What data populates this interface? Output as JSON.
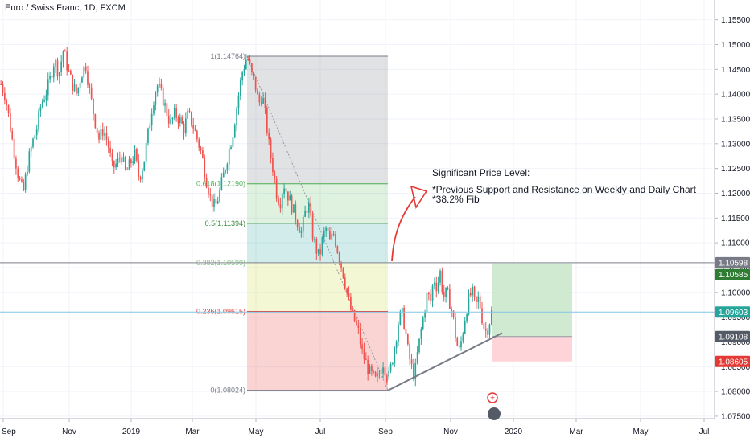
{
  "chart_title": "Euro / Swiss Franc, 1D, FXCM",
  "annotation": {
    "heading": "Significant Price Level:",
    "line1": "*Previous Support and Resistance on Weekly and Daily Chart",
    "line2": "*38.2% Fib"
  },
  "colors": {
    "up_candle": "#26a69a",
    "down_candle": "#ef5350",
    "profit_zone": "#c8e6c9",
    "loss_zone": "#ffcdd2",
    "current_price_line": "#82c5e6",
    "annotation_arrow": "#e53935"
  },
  "chart_data": {
    "type": "candlestick",
    "title": "Euro / Swiss Franc, 1D, FXCM",
    "y_ticks": [
      "1.15500",
      "1.15000",
      "1.14500",
      "1.14000",
      "1.13500",
      "1.13000",
      "1.12500",
      "1.12000",
      "1.11500",
      "1.11000",
      "1.10500",
      "1.10000",
      "1.09500",
      "1.09000",
      "1.08500",
      "1.08000",
      "1.07500"
    ],
    "x_ticks": [
      "Sep",
      "Nov",
      "2019",
      "Mar",
      "May",
      "Jul",
      "Sep",
      "Nov",
      "2020",
      "Mar",
      "May",
      "Jul"
    ],
    "ylim": [
      1.0745,
      1.159
    ],
    "fib_levels": [
      {
        "label": "1(1.14764)",
        "ratio": 1,
        "price": 1.14764,
        "color": "#787b86"
      },
      {
        "label": "0.618(1.12190)",
        "ratio": 0.618,
        "price": 1.1219,
        "color": "#4caf50"
      },
      {
        "label": "0.5(1.11394)",
        "ratio": 0.5,
        "price": 1.11394,
        "color": "#388e3c"
      },
      {
        "label": "0.382(1.10599)",
        "ratio": 0.382,
        "price": 1.10599,
        "color": "#81c784"
      },
      {
        "label": "0.236(1.09615)",
        "ratio": 0.236,
        "price": 1.09615,
        "color": "#e53935"
      },
      {
        "label": "0(1.08024)",
        "ratio": 0,
        "price": 1.08024,
        "color": "#787b86"
      }
    ],
    "horizontal_level": 1.10598,
    "current_price": 1.09603,
    "position": {
      "entry": 1.09108,
      "target": 1.10585,
      "stop": 1.08605
    },
    "price_tags": [
      {
        "value": "1.10598",
        "price": 1.10598,
        "bg": "#787b86"
      },
      {
        "value": "1.10585",
        "price": 1.10585,
        "bg": "#2e7d32"
      },
      {
        "value": "1.09603",
        "price": 1.09603,
        "bg": "#26a69a"
      },
      {
        "value": "1.09108",
        "price": 1.09108,
        "bg": "#555b66"
      },
      {
        "value": "1.08605",
        "price": 1.08605,
        "bg": "#e53935"
      }
    ],
    "badge_count": "4",
    "ohlc_path": [
      [
        1.142,
        1.1395,
        1.134,
        1.128,
        1.123,
        1.12,
        1.126,
        1.13,
        1.133,
        1.138,
        1.14,
        1.143,
        1.147,
        1.144,
        1.149,
        1.145,
        1.142,
        1.14,
        1.144,
        1.146,
        1.14,
        1.135,
        1.131,
        1.133,
        1.13,
        1.125,
        1.126,
        1.128,
        1.124,
        1.126,
        1.128,
        1.123,
        1.126,
        1.132,
        1.138,
        1.142,
        1.14,
        1.137,
        1.134,
        1.136,
        1.135,
        1.133,
        1.136,
        1.134,
        1.131,
        1.128,
        1.123,
        1.119,
        1.117,
        1.12,
        1.124,
        1.128,
        1.132,
        1.138,
        1.144,
        1.147
      ],
      [
        1.147,
        1.144,
        1.142,
        1.138,
        1.14,
        1.135,
        1.129,
        1.125,
        1.12,
        1.118,
        1.122,
        1.12,
        1.118,
        1.116,
        1.114,
        1.112,
        1.116,
        1.118,
        1.112,
        1.109,
        1.107,
        1.111,
        1.113,
        1.11,
        1.112,
        1.109,
        1.106,
        1.103,
        1.099,
        1.096,
        1.094,
        1.092,
        1.088,
        1.086,
        1.084,
        1.083,
        1.082,
        1.084,
        1.086,
        1.083
      ],
      [
        1.083,
        1.086,
        1.09,
        1.094,
        1.096,
        1.093,
        1.088,
        1.085,
        1.083,
        1.088,
        1.092,
        1.096,
        1.1,
        1.098,
        1.103,
        1.101,
        1.104,
        1.099,
        1.1,
        1.098,
        1.095,
        1.09,
        1.088,
        1.092,
        1.096,
        1.099,
        1.1,
        1.097,
        1.099,
        1.095,
        1.092,
        1.093,
        1.096
      ]
    ]
  }
}
